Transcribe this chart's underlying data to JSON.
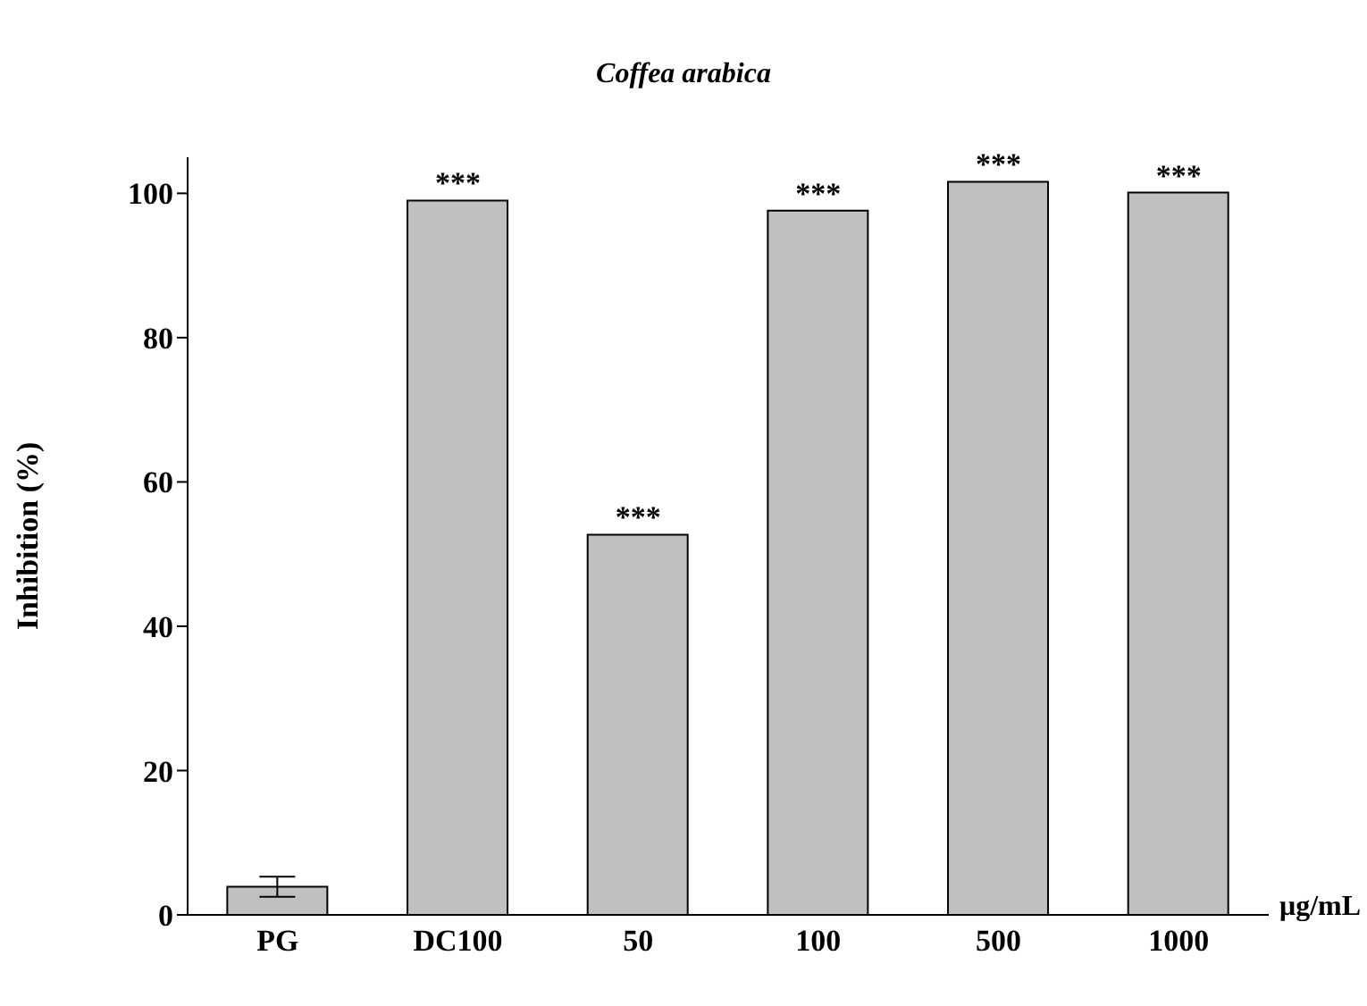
{
  "chart_data": {
    "type": "bar",
    "title": "Coffea arabica",
    "xlabel": "μg/mL",
    "ylabel": "Inhibition (%)",
    "categories": [
      "PG",
      "DC100",
      "50",
      "100",
      "500",
      "1000"
    ],
    "values": [
      3.9,
      99.0,
      52.7,
      97.6,
      101.6,
      100.1
    ],
    "errors": [
      1.4,
      null,
      null,
      null,
      null,
      null
    ],
    "color": "#c0c0c0",
    "ylim": [
      0,
      105
    ],
    "yticks": [
      0,
      20,
      40,
      60,
      80,
      100
    ],
    "grid": false,
    "legend": false,
    "annotations": [
      {
        "text": "***",
        "x": "DC100",
        "y": 99.0
      },
      {
        "text": "***",
        "x": "50",
        "y": 52.7
      },
      {
        "text": "***",
        "x": "100",
        "y": 97.6
      },
      {
        "text": "***",
        "x": "500",
        "y": 101.6
      },
      {
        "text": "***",
        "x": "1000",
        "y": 100.1
      }
    ]
  }
}
